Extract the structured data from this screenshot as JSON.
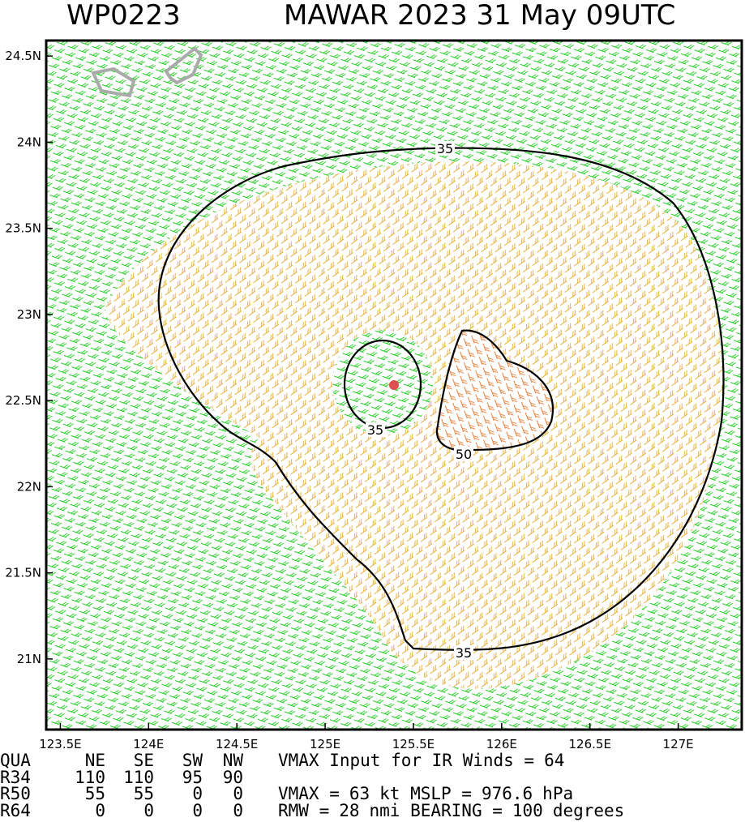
{
  "chart_data": {
    "type": "map",
    "title": "WP0223",
    "subtitle": "MAWAR 2023 31 May 09UTC",
    "xlim": [
      123.42,
      127.36
    ],
    "ylim": [
      20.59,
      24.59
    ],
    "xticks": [
      {
        "value": 123.5,
        "label": "123.5E"
      },
      {
        "value": 124,
        "label": "124E"
      },
      {
        "value": 124.5,
        "label": "124.5E"
      },
      {
        "value": 125,
        "label": "125E"
      },
      {
        "value": 125.5,
        "label": "125.5E"
      },
      {
        "value": 126,
        "label": "126E"
      },
      {
        "value": 126.5,
        "label": "126.5E"
      },
      {
        "value": 127,
        "label": "127E"
      }
    ],
    "yticks": [
      {
        "value": 21,
        "label": "21N"
      },
      {
        "value": 21.5,
        "label": "21.5N"
      },
      {
        "value": 22,
        "label": "22N"
      },
      {
        "value": 22.5,
        "label": "22.5N"
      },
      {
        "value": 23,
        "label": "23N"
      },
      {
        "value": 23.5,
        "label": "23.5N"
      },
      {
        "value": 24,
        "label": "24N"
      },
      {
        "value": 24.5,
        "label": "24.5N"
      }
    ],
    "center": {
      "lon": 125.39,
      "lat": 22.59,
      "color": "#e05050"
    },
    "contour_labels": [
      35,
      35,
      35,
      50
    ]
  },
  "info": {
    "header": [
      "QUA",
      "NE",
      "SE",
      "SW",
      "NW"
    ],
    "rows": [
      [
        "R34",
        110,
        110,
        95,
        90
      ],
      [
        "R50",
        55,
        55,
        0,
        0
      ],
      [
        "R64",
        0,
        0,
        0,
        0
      ]
    ],
    "lines": [
      [
        "VMAX Input for IR Winds =",
        64
      ],
      [
        "VMAX =",
        63,
        "kt MSLP =",
        976.6,
        "hPa"
      ],
      [
        "RMW =",
        28,
        "nmi BEARING =",
        100,
        "degrees"
      ]
    ]
  }
}
